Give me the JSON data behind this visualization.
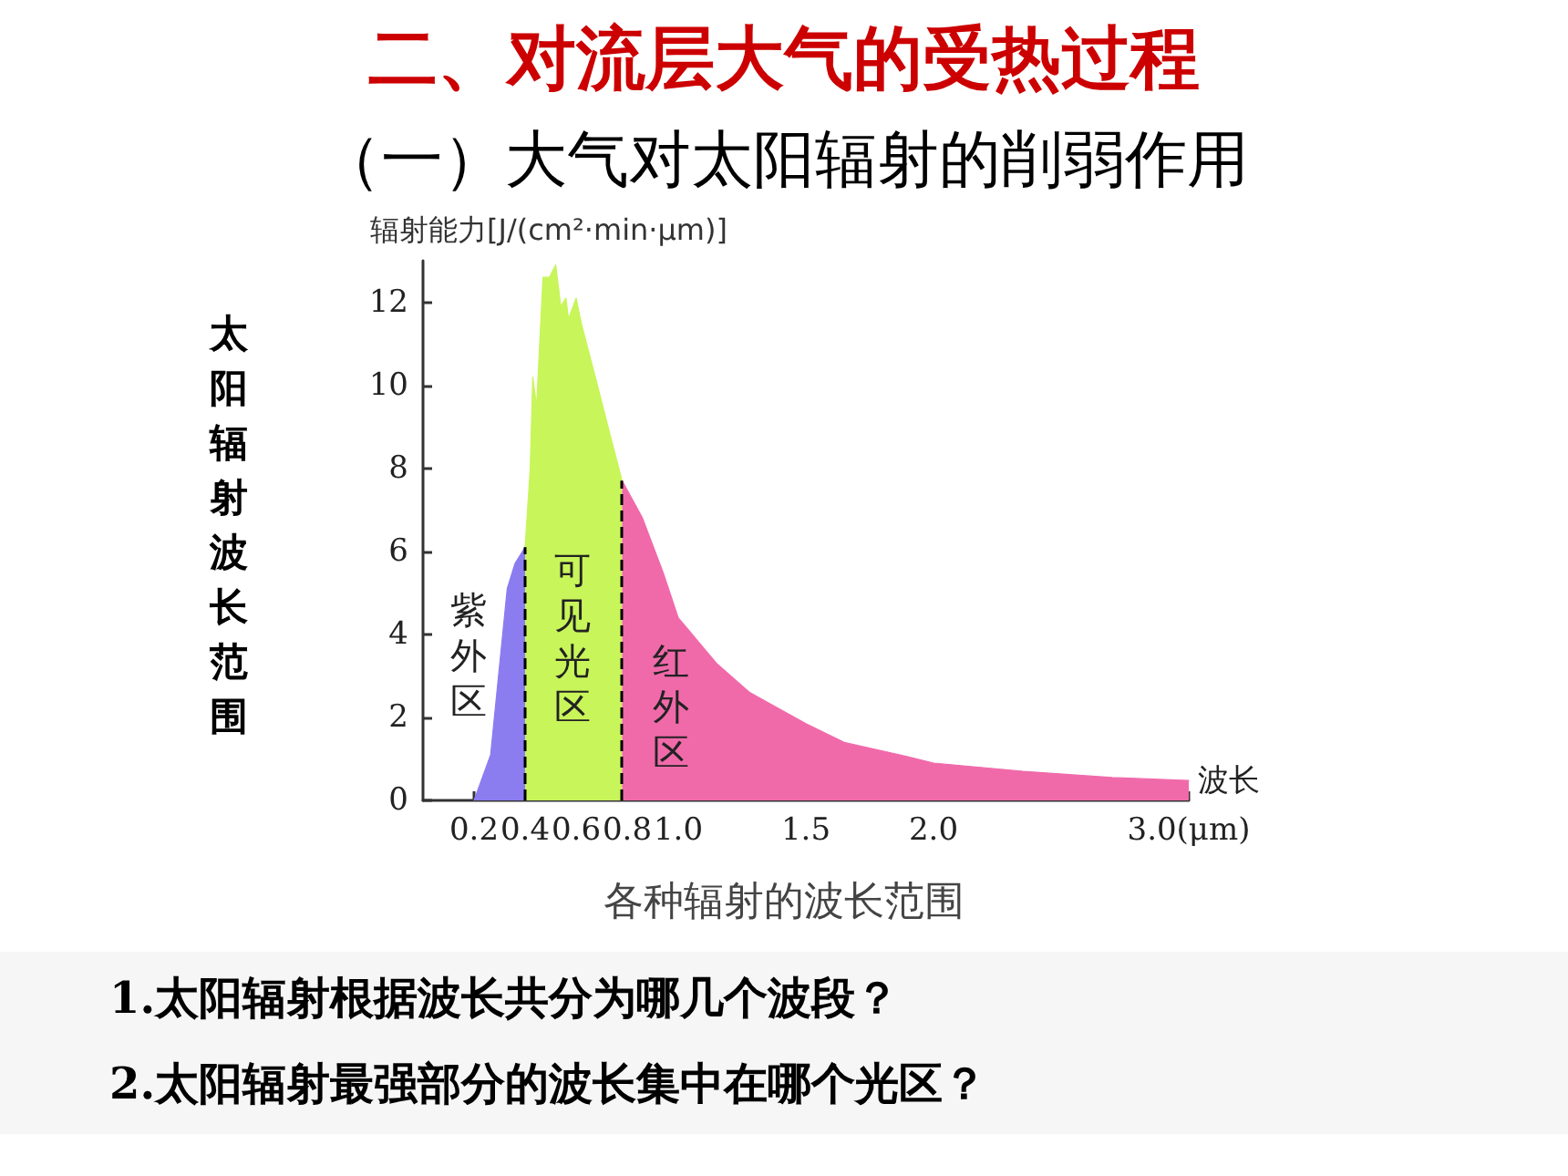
{
  "chart_data": {
    "type": "area",
    "title": "二、对流层大气的受热过程",
    "subtitle": "（一）大气对太阳辐射的削弱作用",
    "ylabel": "辐射能力[J/(cm²·min·μm)]",
    "xlabel": "波长",
    "annotations": [
      "太阳辐射波长范围",
      "各种辐射的波长范围",
      "1.太阳辐射根据波长共分为哪几个波段？",
      "2.太阳辐射最强部分的波长集中在哪个光区？",
      "紫外区",
      "可见光区",
      "红外区"
    ],
    "xlim": [
      0,
      3.0
    ],
    "xticks": [
      0.2,
      0.4,
      0.6,
      0.8,
      {
        "value": 1.0,
        "label": "1.0"
      },
      1.5,
      {
        "value": 2.0,
        "label": "2.0"
      },
      {
        "value": 3.0,
        "label": "3.0(μm)"
      }
    ],
    "ylim": [
      0,
      13
    ],
    "yticks": [
      0,
      2,
      4,
      6,
      8,
      10,
      12
    ],
    "grid": false,
    "marker": "none",
    "ref_lines": [
      {
        "axis": "x",
        "value": 0.4,
        "line_style": "dashed",
        "color": "#000000"
      },
      {
        "axis": "x",
        "value": 0.78,
        "line_style": "dashed",
        "color": "#000000"
      }
    ],
    "series": [
      {
        "color": "#8b7cf0",
        "x": [
          0.2,
          0.265,
          0.33,
          0.36,
          0.4
        ],
        "values": [
          0,
          1.1,
          5.1,
          5.7,
          6.1
        ]
      },
      {
        "color": "#c8f55a",
        "x": [
          0.4,
          0.42,
          0.43,
          0.445,
          0.47,
          0.495,
          0.52,
          0.54,
          0.56,
          0.57,
          0.6,
          0.62,
          0.675,
          0.725,
          0.78
        ],
        "values": [
          6.1,
          8,
          10.2,
          9.5,
          12.6,
          12.6,
          12.9,
          11.9,
          12.1,
          11.6,
          12.1,
          11.5,
          10.2,
          9,
          7.7
        ]
      },
      {
        "color": "#f06aaa",
        "x": [
          0.78,
          0.86,
          0.94,
          1.0,
          1.15,
          1.28,
          1.5,
          1.65,
          1.9,
          2.0,
          2.35,
          2.7,
          3.0
        ],
        "values": [
          7.7,
          6.8,
          5.5,
          4.4,
          3.3,
          2.6,
          1.85,
          1.4,
          1.05,
          0.9,
          0.7,
          0.55,
          0.48
        ]
      }
    ]
  }
}
